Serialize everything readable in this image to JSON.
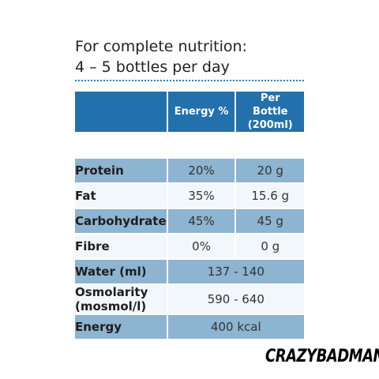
{
  "heading": {
    "line1": "For complete nutrition:",
    "line2": "4 – 5 bottles per day"
  },
  "table": {
    "columns": [
      "Energy %",
      "Per Bottle (200ml)"
    ],
    "rows": [
      {
        "label": "Protein",
        "energy": "20%",
        "per_bottle": "20 g"
      },
      {
        "label": "Fat",
        "energy": "35%",
        "per_bottle": "15.6 g"
      },
      {
        "label": "Carbohydrate",
        "energy": "45%",
        "per_bottle": "45 g"
      },
      {
        "label": "Fibre",
        "energy": "0%",
        "per_bottle": "0 g"
      },
      {
        "label": "Water (ml)",
        "value": "137 - 140"
      },
      {
        "label": "Osmolarity (mosmol/l)",
        "value": "590 - 640"
      },
      {
        "label": "Energy",
        "value": "400 kcal"
      }
    ]
  },
  "brand": "CRAZYBADMAN",
  "colors": {
    "header": "#2271ad",
    "row_dark": "#8db4d1",
    "row_light": "#f2f7fb",
    "dots": "#2f7fb5"
  }
}
